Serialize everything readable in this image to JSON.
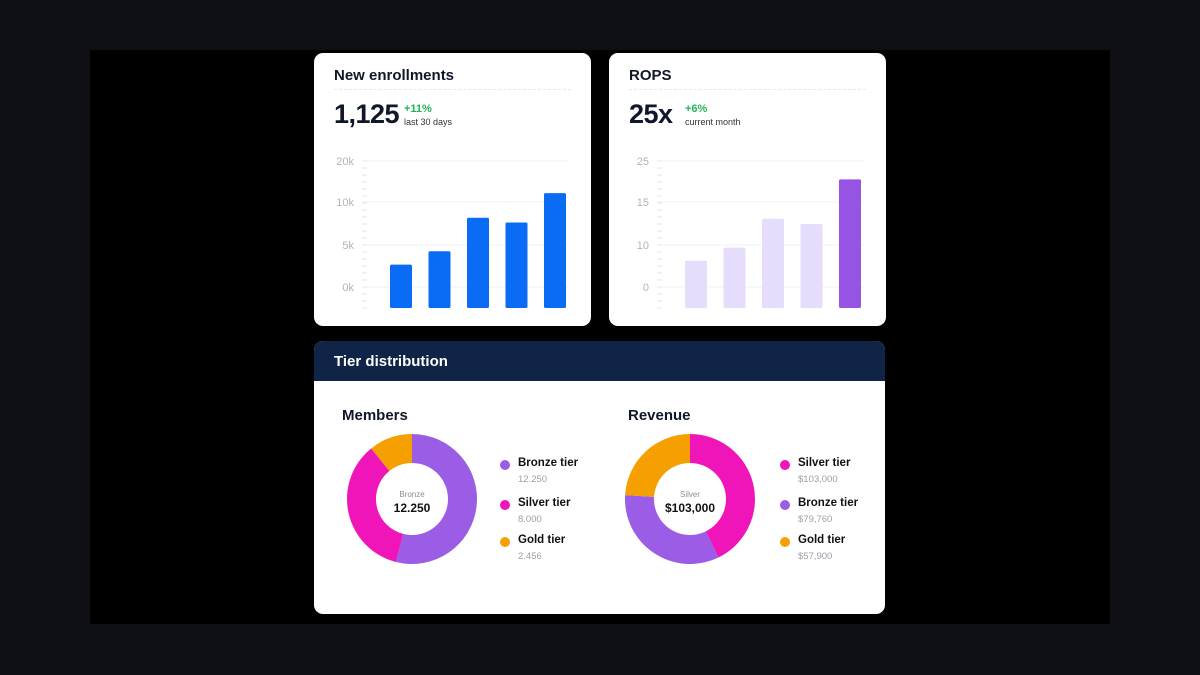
{
  "enrollments": {
    "title": "New enrollments",
    "kpi": "1,125",
    "delta": "+11%",
    "delta_sub": "last 30 days"
  },
  "rops": {
    "title": "ROPS",
    "kpi": "25x",
    "delta": "+6%",
    "delta_sub": "current month"
  },
  "tier": {
    "header": "Tier distribution",
    "members": {
      "title": "Members",
      "center_small": "Bronze",
      "center_big": "12.250",
      "legend": [
        {
          "name": "Bronze tier",
          "value": "12.250",
          "color": "#9b5de5"
        },
        {
          "name": "Silver tier",
          "value": "8.000",
          "color": "#f015b8"
        },
        {
          "name": "Gold tier",
          "value": "2.456",
          "color": "#f5a000"
        }
      ]
    },
    "revenue": {
      "title": "Revenue",
      "center_small": "Silver",
      "center_big": "$103,000",
      "legend": [
        {
          "name": "Silver tier",
          "value": "$103,000",
          "color": "#f015b8"
        },
        {
          "name": "Bronze tier",
          "value": "$79,760",
          "color": "#9b5de5"
        },
        {
          "name": "Gold tier",
          "value": "$57,900",
          "color": "#f5a000"
        }
      ]
    }
  },
  "chart_data": [
    {
      "type": "bar",
      "title": "New enrollments",
      "yticks": [
        "0k",
        "5k",
        "10k",
        "20k"
      ],
      "values": [
        4500,
        6500,
        11500,
        10800,
        15200
      ],
      "ylim": [
        -2000,
        20000
      ],
      "color": "#0a6cf5",
      "grid": true
    },
    {
      "type": "bar",
      "title": "ROPS",
      "yticks": [
        "0",
        "10",
        "15",
        "25"
      ],
      "values": [
        6,
        8.5,
        14,
        13,
        21.5
      ],
      "ylim": [
        -3,
        25
      ],
      "colors": [
        "#e6dcfb",
        "#e6dcfb",
        "#e6dcfb",
        "#e6dcfb",
        "#9554e3"
      ],
      "grid": true
    },
    {
      "type": "pie",
      "title": "Members",
      "labels": [
        "Bronze tier",
        "Silver tier",
        "Gold tier"
      ],
      "values": [
        12250,
        8000,
        2456
      ],
      "colors": [
        "#9b5de5",
        "#f015b8",
        "#f5a000"
      ]
    },
    {
      "type": "pie",
      "title": "Revenue",
      "labels": [
        "Silver tier",
        "Bronze tier",
        "Gold tier"
      ],
      "values": [
        103000,
        79760,
        57900
      ],
      "colors": [
        "#f015b8",
        "#9b5de5",
        "#f5a000"
      ]
    }
  ]
}
